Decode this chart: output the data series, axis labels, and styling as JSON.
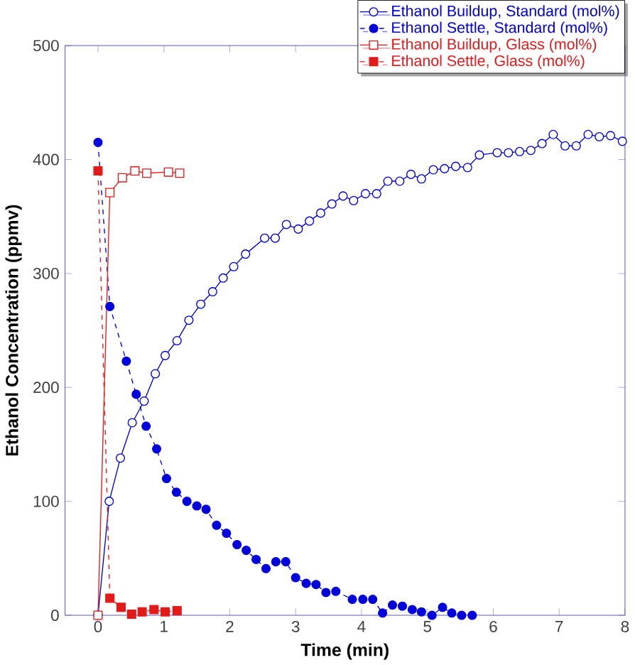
{
  "chart_data": {
    "type": "line",
    "xlabel": "Time (min)",
    "ylabel": "Ethanol Concentration (ppmv)",
    "xlim": [
      -0.5,
      8
    ],
    "ylim": [
      0,
      500
    ],
    "xticks": [
      0,
      1,
      2,
      3,
      4,
      5,
      6,
      7,
      8
    ],
    "yticks": [
      0,
      100,
      200,
      300,
      400,
      500
    ],
    "legend": "top right",
    "grid": false,
    "series": [
      {
        "name": "Ethanol Buildup, Standard (mol%)",
        "color": "#0000dd",
        "marker": "circle",
        "line_style": "solid",
        "x": [
          0,
          0.17,
          0.34,
          0.52,
          0.7,
          0.87,
          1.02,
          1.2,
          1.38,
          1.56,
          1.74,
          1.9,
          2.06,
          2.24,
          2.53,
          2.69,
          2.86,
          3.04,
          3.21,
          3.38,
          3.55,
          3.72,
          3.88,
          4.06,
          4.23,
          4.4,
          4.58,
          4.75,
          4.91,
          5.09,
          5.26,
          5.43,
          5.61,
          5.79,
          6.06,
          6.23,
          6.4,
          6.57,
          6.74,
          6.91,
          7.09,
          7.26,
          7.44,
          7.61,
          7.78,
          7.96
        ],
        "values": [
          0,
          100,
          138,
          169,
          188,
          212,
          228,
          241,
          259,
          273,
          284,
          296,
          306,
          317,
          331,
          331,
          343,
          339,
          346,
          353,
          361,
          368,
          364,
          370,
          370,
          381,
          381,
          387,
          383,
          391,
          392,
          394,
          393,
          404,
          406,
          406,
          407,
          408,
          414,
          422,
          412,
          412,
          422,
          420,
          421,
          416
        ]
      },
      {
        "name": "Ethanol Settle, Standard (mol%)",
        "color": "#0000dd",
        "marker": "circle",
        "line_style": "dashed",
        "x": [
          0,
          0.18,
          0.43,
          0.58,
          0.73,
          0.89,
          1.04,
          1.19,
          1.35,
          1.5,
          1.64,
          1.8,
          1.95,
          2.11,
          2.25,
          2.4,
          2.55,
          2.7,
          2.85,
          3.0,
          3.16,
          3.31,
          3.46,
          3.61,
          3.86,
          4.02,
          4.17,
          4.32,
          4.47,
          4.62,
          4.77,
          4.91,
          5.07,
          5.23,
          5.37,
          5.52,
          5.68
        ],
        "values": [
          415,
          271,
          223,
          194,
          166,
          146,
          120,
          108,
          100,
          96,
          93,
          79,
          72,
          62,
          57,
          49,
          41,
          47,
          47,
          33,
          28,
          27,
          20,
          21,
          14,
          14,
          14,
          2,
          9,
          8,
          5,
          3,
          0,
          7,
          2,
          0,
          0
        ]
      },
      {
        "name": "Ethanol Buildup, Glass (mol%)",
        "color": "#e31a1a",
        "marker": "square",
        "line_style": "solid",
        "x": [
          0,
          0.18,
          0.37,
          0.56,
          0.74,
          1.07,
          1.24
        ],
        "values": [
          0,
          371,
          384,
          390,
          388,
          389,
          388
        ]
      },
      {
        "name": "Ethanol Settle, Glass (mol%)",
        "color": "#e31a1a",
        "marker": "square",
        "line_style": "dashed",
        "x": [
          0,
          0.18,
          0.35,
          0.51,
          0.67,
          0.85,
          1.02,
          1.2
        ],
        "values": [
          390,
          15,
          7,
          1,
          3,
          5,
          3,
          4
        ]
      }
    ]
  }
}
